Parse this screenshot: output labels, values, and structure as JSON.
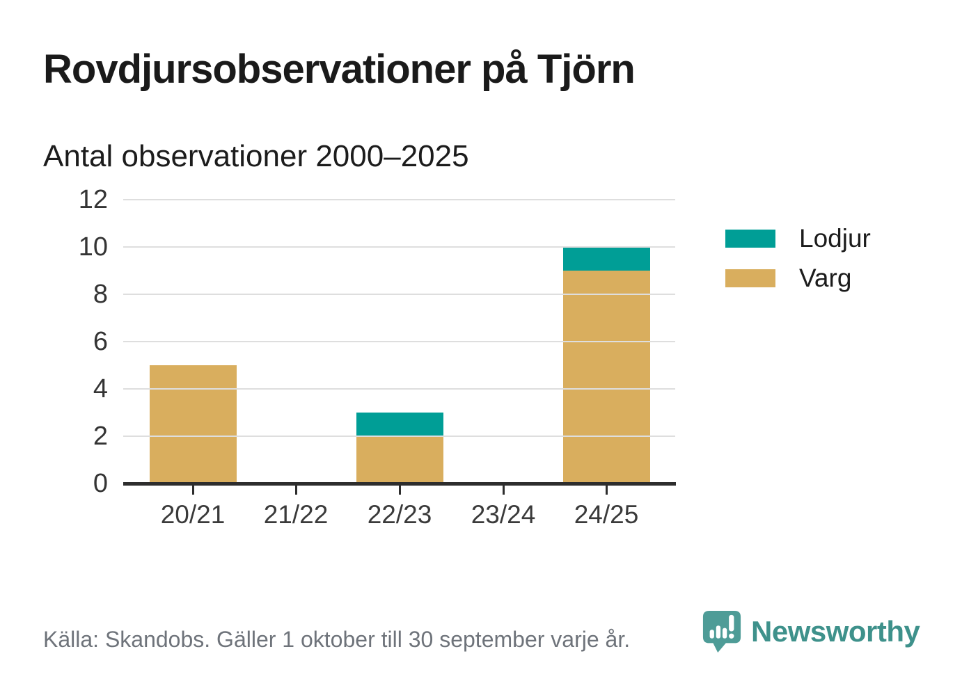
{
  "title": "Rovdjursobservationer på Tjörn",
  "subtitle": "Antal observationer 2000–2025",
  "source": "Källa: Skandobs. Gäller 1 oktober till 30 september varje år.",
  "brand": {
    "name": "Newsworthy",
    "icon": "speech-bubble-bar-chart-exclamation-icon",
    "icon_color": "#4e9c97",
    "wordmark_color": "#3e918b"
  },
  "colors": {
    "lodjur": "#009e96",
    "varg": "#d9ae5e",
    "grid": "#dedede",
    "axis": "#2d2d2d",
    "tick_label": "#3a3a3a",
    "title_text": "#1a1a1a",
    "source_text": "#6e737a"
  },
  "chart_data": {
    "type": "bar",
    "stacked": true,
    "title": "Rovdjursobservationer på Tjörn",
    "subtitle": "Antal observationer 2000–2025",
    "categories": [
      "20/21",
      "21/22",
      "22/23",
      "23/24",
      "24/25"
    ],
    "series": [
      {
        "name": "Varg",
        "color": "#d9ae5e",
        "values": [
          5,
          0,
          2,
          0,
          9
        ]
      },
      {
        "name": "Lodjur",
        "color": "#009e96",
        "values": [
          0,
          0,
          1,
          0,
          1
        ]
      }
    ],
    "totals": [
      5,
      0,
      3,
      0,
      10
    ],
    "xlabel": "",
    "ylabel": "",
    "y_ticks": [
      0,
      2,
      4,
      6,
      8,
      10,
      12
    ],
    "ylim": [
      0,
      12
    ],
    "grid": "horizontal",
    "legend_position": "right",
    "legend": [
      {
        "label": "Lodjur",
        "color": "#009e96"
      },
      {
        "label": "Varg",
        "color": "#d9ae5e"
      }
    ]
  }
}
